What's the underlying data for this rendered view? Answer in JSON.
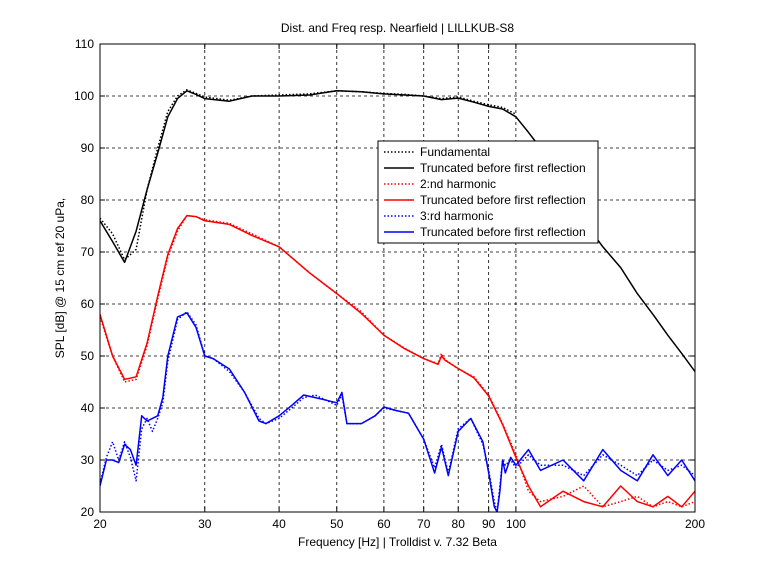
{
  "chart_data": {
    "type": "line",
    "title": "Dist. and Freq resp. Nearfield | LILLKUB-S8",
    "xlabel": "Frequency [Hz] | Trolldist v. 7.32 Beta",
    "ylabel": "SPL [dB] @ 15 cm ref 20 uPa,",
    "x_scale": "log",
    "xlim": [
      20,
      200
    ],
    "ylim": [
      20,
      110
    ],
    "x_ticks": [
      20,
      30,
      40,
      50,
      60,
      70,
      80,
      90,
      100,
      200
    ],
    "y_ticks": [
      20,
      30,
      40,
      50,
      60,
      70,
      80,
      90,
      100,
      110
    ],
    "grid": true,
    "legend_position": "upper-right",
    "series": [
      {
        "name": "Fundamental",
        "color": "#000000",
        "style": "dotted",
        "x": [
          20,
          21,
          22,
          23,
          24,
          25,
          26,
          27,
          28,
          29,
          30,
          33,
          36,
          40,
          45,
          50,
          55,
          60,
          65,
          70,
          75,
          80,
          85,
          90,
          95,
          100
        ],
        "values": [
          76.5,
          73.5,
          68.5,
          70.5,
          82,
          90,
          97,
          100,
          101.2,
          100.5,
          99.8,
          99.2,
          100,
          100.2,
          100.4,
          101,
          100.8,
          100.5,
          100.3,
          100,
          99.5,
          99.8,
          99,
          98.3,
          97.8,
          96.5
        ]
      },
      {
        "name": "Truncated before first reflection",
        "color": "#000000",
        "style": "solid",
        "x": [
          20,
          21,
          22,
          23,
          24,
          25,
          26,
          27,
          28,
          29,
          30,
          33,
          36,
          40,
          45,
          50,
          55,
          60,
          65,
          70,
          75,
          80,
          85,
          90,
          95,
          100,
          105,
          110,
          120,
          130,
          140,
          150,
          160,
          170,
          180,
          190,
          200
        ],
        "values": [
          76,
          72,
          68,
          74,
          82,
          89,
          96,
          99.5,
          101,
          100.3,
          99.5,
          99,
          100,
          100,
          100.2,
          101,
          100.8,
          100.4,
          100.2,
          100,
          99.3,
          99.6,
          98.8,
          98,
          97.5,
          96,
          93,
          90,
          83,
          76,
          71,
          67,
          62,
          58,
          54,
          50.5,
          47
        ]
      },
      {
        "name": "2:nd harmonic",
        "color": "#ff0000",
        "style": "dotted",
        "x": [
          20,
          21,
          22,
          23,
          24,
          25,
          26,
          27,
          28,
          29,
          30,
          33,
          36,
          40,
          45,
          50,
          55,
          60,
          65,
          70,
          74,
          75,
          76,
          80,
          85,
          90,
          95,
          100,
          105,
          110,
          120,
          130,
          140,
          150,
          160,
          170,
          180,
          190,
          200
        ],
        "values": [
          57.5,
          50,
          45,
          45.5,
          52,
          61,
          69,
          74,
          77,
          76.8,
          76.2,
          75.5,
          73.5,
          71,
          66,
          62,
          58.5,
          54,
          51.5,
          49.5,
          48.5,
          50.5,
          49.3,
          47.5,
          46,
          42.5,
          37,
          31,
          24,
          22,
          23,
          25,
          21,
          22,
          23,
          21,
          22,
          21,
          22
        ]
      },
      {
        "name": "Truncated before first reflection",
        "color": "#ff0000",
        "style": "solid",
        "x": [
          20,
          21,
          22,
          23,
          24,
          25,
          26,
          27,
          28,
          29,
          30,
          33,
          36,
          40,
          45,
          50,
          55,
          60,
          65,
          70,
          74,
          75,
          76,
          80,
          85,
          90,
          95,
          100,
          105,
          110,
          120,
          130,
          140,
          150,
          160,
          170,
          180,
          190,
          200
        ],
        "values": [
          58,
          50,
          45.5,
          46,
          52.5,
          61.5,
          69.5,
          74.5,
          77,
          76.8,
          76,
          75.3,
          73.2,
          71,
          66,
          62,
          58.2,
          54,
          51.4,
          49.5,
          48.4,
          50,
          49.2,
          47.6,
          45.8,
          42.3,
          36.8,
          30.5,
          25,
          21,
          24,
          22,
          21,
          25,
          22,
          21,
          23,
          21,
          24
        ]
      },
      {
        "name": "3:rd harmonic",
        "color": "#0000ff",
        "style": "dotted",
        "x": [
          20,
          20.5,
          21,
          21.5,
          22,
          22.5,
          23,
          23.5,
          24,
          24.5,
          25,
          25.5,
          26,
          27,
          28,
          29,
          30,
          31,
          33,
          35,
          37,
          38,
          40,
          42,
          44,
          46,
          48,
          50,
          51,
          52,
          55,
          58,
          60,
          63,
          66,
          70,
          73,
          75,
          77,
          80,
          84,
          88,
          90,
          92,
          93,
          94,
          95,
          96,
          98,
          100,
          105,
          110,
          120,
          130,
          140,
          150,
          160,
          170,
          180,
          190,
          200
        ],
        "values": [
          25.5,
          30.5,
          33.5,
          30,
          33.5,
          30.5,
          26,
          36,
          38,
          35.5,
          38,
          41,
          49,
          57,
          58.5,
          56,
          50,
          49.5,
          47,
          43,
          38,
          37,
          38,
          40,
          42,
          42.5,
          41.5,
          40.5,
          42.5,
          37,
          37,
          38.5,
          40,
          39.5,
          39,
          34,
          28.5,
          33,
          27.5,
          36,
          38,
          33,
          28,
          22,
          20,
          25,
          30,
          29,
          30,
          28.5,
          31,
          29,
          29,
          27,
          31,
          29,
          27,
          30,
          28,
          29,
          27
        ]
      },
      {
        "name": "Truncated before first reflection",
        "color": "#0000ff",
        "style": "solid",
        "x": [
          20,
          20.5,
          21,
          21.5,
          22,
          22.5,
          23,
          23.5,
          24,
          24.5,
          25,
          25.5,
          26,
          27,
          28,
          29,
          30,
          31,
          33,
          35,
          37,
          38,
          40,
          42,
          44,
          46,
          48,
          50,
          51,
          52,
          55,
          58,
          60,
          63,
          66,
          70,
          73,
          75,
          77,
          80,
          84,
          88,
          90,
          92,
          93,
          94,
          95,
          96,
          98,
          100,
          105,
          110,
          120,
          130,
          140,
          150,
          160,
          170,
          180,
          190,
          200
        ],
        "values": [
          25,
          30,
          30,
          29.5,
          33,
          32,
          29,
          38.5,
          37.5,
          38,
          38.5,
          42,
          50,
          57.5,
          58.3,
          55.5,
          50,
          49.5,
          47.5,
          43,
          37.5,
          37,
          38.5,
          40.5,
          42.5,
          42,
          41.5,
          41,
          43,
          37,
          37,
          38.5,
          40.2,
          39.5,
          39,
          34,
          27.5,
          32.5,
          27,
          35.5,
          38,
          33.5,
          27.5,
          21,
          20,
          24,
          30,
          27.5,
          30.5,
          29,
          32,
          28,
          30,
          26,
          32,
          28,
          26,
          31,
          27,
          30,
          26
        ]
      }
    ]
  }
}
